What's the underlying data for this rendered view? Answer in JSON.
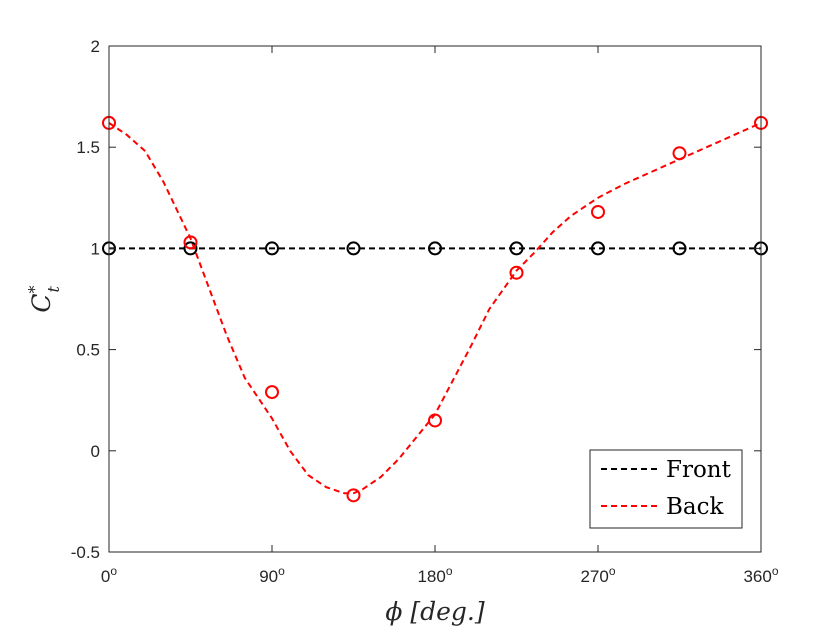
{
  "chart_data": {
    "type": "line",
    "xlabel": "ϕ [deg.]",
    "ylabel": "C*t",
    "ylabel_main": "C",
    "ylabel_sup": "*",
    "ylabel_sub": "t",
    "xlim": [
      0,
      360
    ],
    "ylim": [
      -0.5,
      2
    ],
    "xticks": [
      0,
      90,
      180,
      270,
      360
    ],
    "xtick_labels": [
      "0",
      "90",
      "180",
      "270",
      "360"
    ],
    "xtick_suffix": "o",
    "yticks": [
      -0.5,
      0,
      0.5,
      1,
      1.5,
      2
    ],
    "ytick_labels": [
      "-0.5",
      "0",
      "0.5",
      "1",
      "1.5",
      "2"
    ],
    "grid": false,
    "legend_position": "bottom-right",
    "series": [
      {
        "name": "Front",
        "color": "#000000",
        "line_style": "dashed",
        "marker": "circle",
        "markers": {
          "x": [
            0,
            45,
            90,
            135,
            180,
            225,
            270,
            315,
            360
          ],
          "y": [
            1,
            1,
            1,
            1,
            1,
            1,
            1,
            1,
            1
          ]
        },
        "curve": {
          "x": [
            0,
            360
          ],
          "y": [
            1,
            1
          ]
        }
      },
      {
        "name": "Back",
        "color": "#ff0000",
        "line_style": "dashed",
        "marker": "circle",
        "markers": {
          "x": [
            0,
            45,
            90,
            135,
            180,
            225,
            270,
            315,
            360
          ],
          "y": [
            1.62,
            1.03,
            0.29,
            -0.22,
            0.15,
            0.88,
            1.18,
            1.47,
            1.62
          ]
        },
        "curve": {
          "x": [
            0,
            10,
            20,
            30,
            45,
            55,
            65,
            75,
            90,
            100,
            110,
            120,
            130,
            135,
            140,
            150,
            160,
            170,
            180,
            190,
            200,
            210,
            225,
            235,
            245,
            255,
            270,
            285,
            300,
            315,
            330,
            345,
            360
          ],
          "y": [
            1.62,
            1.56,
            1.48,
            1.33,
            1.05,
            0.81,
            0.57,
            0.36,
            0.16,
            0.0,
            -0.12,
            -0.18,
            -0.21,
            -0.21,
            -0.19,
            -0.13,
            -0.04,
            0.07,
            0.18,
            0.35,
            0.52,
            0.7,
            0.89,
            0.98,
            1.08,
            1.16,
            1.25,
            1.32,
            1.38,
            1.44,
            1.5,
            1.56,
            1.62
          ]
        }
      }
    ]
  }
}
